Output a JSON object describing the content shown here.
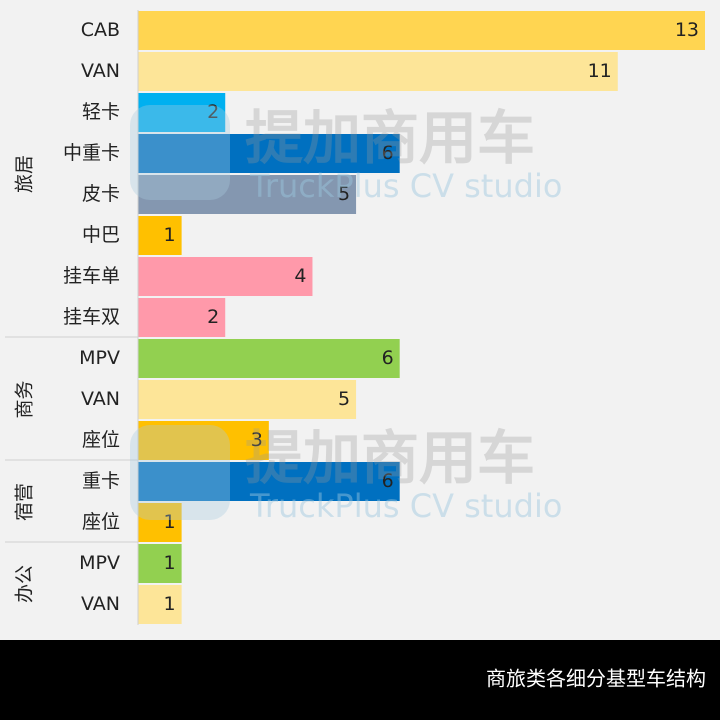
{
  "chart_data": {
    "type": "bar",
    "orientation": "horizontal",
    "xlim": [
      0,
      13
    ],
    "groups": [
      {
        "name": "旅居",
        "categories": [
          "CAB",
          "VAN",
          "轻卡",
          "中重卡",
          "皮卡",
          "中巴",
          "挂车单",
          "挂车双"
        ],
        "values": [
          13,
          11,
          2,
          6,
          5,
          1,
          4,
          2
        ],
        "colors": [
          "#ffd551",
          "#fde598",
          "#00b0f0",
          "#0070c0",
          "#8497b0",
          "#ffc000",
          "#ff99aa",
          "#ff99aa"
        ]
      },
      {
        "name": "商务",
        "categories": [
          "MPV",
          "VAN",
          "座位"
        ],
        "values": [
          6,
          5,
          3
        ],
        "colors": [
          "#92d050",
          "#fde598",
          "#ffc000"
        ]
      },
      {
        "name": "宿营",
        "categories": [
          "重卡",
          "座位"
        ],
        "values": [
          6,
          1
        ],
        "colors": [
          "#0070c0",
          "#ffc000"
        ]
      },
      {
        "name": "办公",
        "categories": [
          "MPV",
          "VAN"
        ],
        "values": [
          1,
          1
        ],
        "colors": [
          "#92d050",
          "#fde598"
        ]
      }
    ],
    "watermark": {
      "title": "提加商用车",
      "subtitle": "TruckPlus CV studio"
    },
    "caption": "商旅类各细分基型车结构"
  }
}
